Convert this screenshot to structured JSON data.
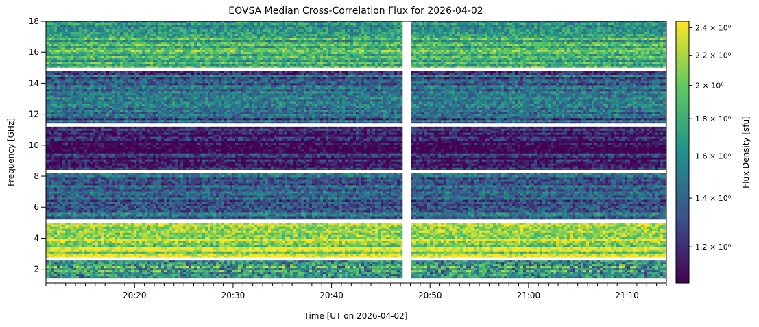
{
  "chart_data": {
    "type": "heatmap",
    "title": "EOVSA Median Cross-Correlation Flux for 2026-04-02",
    "xlabel": "Time [UT on 2026-04-02]",
    "ylabel": "Frequency [GHz]",
    "colorbar_label": "Flux Density [sfu]",
    "colormap": "viridis",
    "colormap_stops": [
      "#440154",
      "#3b528b",
      "#21918c",
      "#5ec962",
      "#fde725"
    ],
    "x_range": [
      "20:11",
      "21:14"
    ],
    "y_range": [
      1.1,
      18.0
    ],
    "x_ticks": [
      "20:20",
      "20:30",
      "20:40",
      "20:50",
      "21:00",
      "21:10"
    ],
    "y_ticks": [
      2,
      4,
      6,
      8,
      10,
      12,
      14,
      16,
      18
    ],
    "colorbar_range": [
      1.07,
      2.45
    ],
    "colorbar_scale": "log",
    "colorbar_ticks": [
      {
        "value": 2.4,
        "label": "2.4 × 10⁰"
      },
      {
        "value": 2.2,
        "label": "2.2 × 10⁰"
      },
      {
        "value": 2.0,
        "label": "2 × 10⁰"
      },
      {
        "value": 1.8,
        "label": "1.8 × 10⁰"
      },
      {
        "value": 1.6,
        "label": "1.6 × 10⁰"
      },
      {
        "value": 1.4,
        "label": "1.4 × 10⁰"
      },
      {
        "value": 1.2,
        "label": "1.2 × 10⁰"
      }
    ],
    "data_gaps": {
      "time": [
        [
          "20:47:20",
          "20:48:00"
        ]
      ],
      "frequency_ghz": [
        [
          2.6,
          2.75
        ],
        [
          5.2,
          5.0
        ],
        [
          8.4,
          8.2
        ],
        [
          11.4,
          11.2
        ],
        [
          14.8,
          15.0
        ]
      ]
    },
    "bands": [
      {
        "freq_range_ghz": [
          1.4,
          2.6
        ],
        "level": 0.72,
        "note": "striped"
      },
      {
        "freq_range_ghz": [
          2.75,
          5.0
        ],
        "level": 0.88
      },
      {
        "freq_range_ghz": [
          5.2,
          8.2
        ],
        "level": 0.32
      },
      {
        "freq_range_ghz": [
          8.4,
          11.2
        ],
        "level": 0.08
      },
      {
        "freq_range_ghz": [
          11.4,
          14.8
        ],
        "level": 0.3
      },
      {
        "freq_range_ghz": [
          15.0,
          18.0
        ],
        "level": 0.62
      }
    ]
  }
}
